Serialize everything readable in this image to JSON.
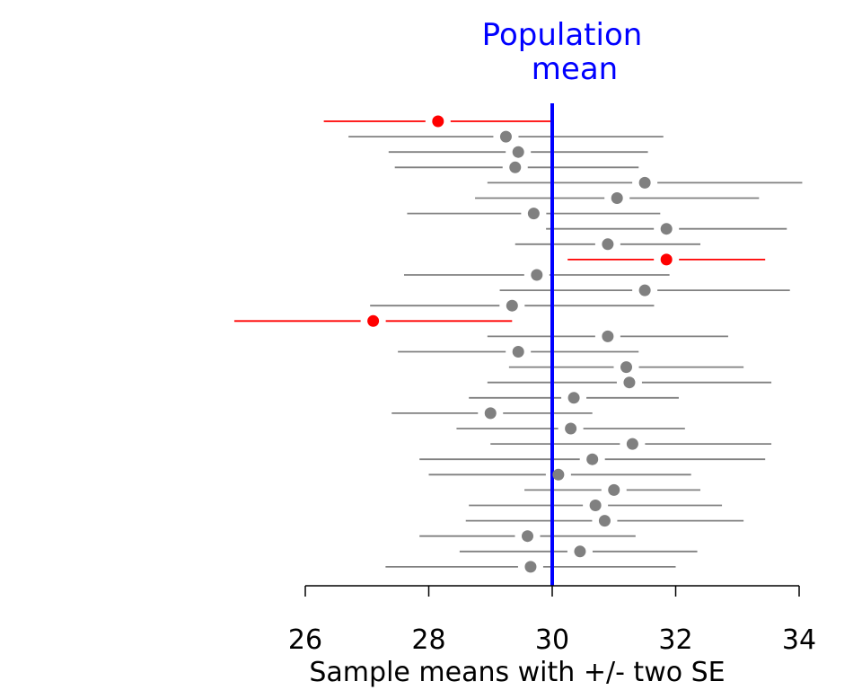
{
  "chart_data": {
    "type": "scatter",
    "title": "Population mean",
    "title_lines": [
      "Population",
      "mean"
    ],
    "xlabel": "Sample means with +/- two SE",
    "ylabel": "",
    "xlim": [
      26,
      34
    ],
    "xticks": [
      26,
      28,
      30,
      32,
      34
    ],
    "xtick_labels": [
      "26",
      "28",
      "30",
      "32",
      "34"
    ],
    "population_mean": 30,
    "grid": false,
    "legend": "none",
    "colors": {
      "covers": "#808080",
      "misses": "#ff0000",
      "population_line": "#0000ff",
      "axis": "#000000"
    },
    "series": [
      {
        "mean": 28.15,
        "lower": 26.3,
        "upper": 30.0,
        "covers_mean": false
      },
      {
        "mean": 29.25,
        "lower": 26.7,
        "upper": 31.8,
        "covers_mean": true
      },
      {
        "mean": 29.45,
        "lower": 27.35,
        "upper": 31.55,
        "covers_mean": true
      },
      {
        "mean": 29.4,
        "lower": 27.45,
        "upper": 31.4,
        "covers_mean": true
      },
      {
        "mean": 31.5,
        "lower": 28.95,
        "upper": 34.05,
        "covers_mean": true
      },
      {
        "mean": 31.05,
        "lower": 28.75,
        "upper": 33.35,
        "covers_mean": true
      },
      {
        "mean": 29.7,
        "lower": 27.65,
        "upper": 31.75,
        "covers_mean": true
      },
      {
        "mean": 31.85,
        "lower": 29.9,
        "upper": 33.8,
        "covers_mean": true
      },
      {
        "mean": 30.9,
        "lower": 29.4,
        "upper": 32.4,
        "covers_mean": true
      },
      {
        "mean": 31.85,
        "lower": 30.25,
        "upper": 33.45,
        "covers_mean": false
      },
      {
        "mean": 29.75,
        "lower": 27.6,
        "upper": 31.9,
        "covers_mean": true
      },
      {
        "mean": 31.5,
        "lower": 29.15,
        "upper": 33.85,
        "covers_mean": true
      },
      {
        "mean": 29.35,
        "lower": 27.05,
        "upper": 31.65,
        "covers_mean": true
      },
      {
        "mean": 27.1,
        "lower": 24.85,
        "upper": 29.35,
        "covers_mean": false
      },
      {
        "mean": 30.9,
        "lower": 28.95,
        "upper": 32.85,
        "covers_mean": true
      },
      {
        "mean": 29.45,
        "lower": 27.5,
        "upper": 31.4,
        "covers_mean": true
      },
      {
        "mean": 31.2,
        "lower": 29.3,
        "upper": 33.1,
        "covers_mean": true
      },
      {
        "mean": 31.25,
        "lower": 28.95,
        "upper": 33.55,
        "covers_mean": true
      },
      {
        "mean": 30.35,
        "lower": 28.65,
        "upper": 32.05,
        "covers_mean": true
      },
      {
        "mean": 29.0,
        "lower": 27.4,
        "upper": 30.65,
        "covers_mean": true
      },
      {
        "mean": 30.3,
        "lower": 28.45,
        "upper": 32.15,
        "covers_mean": true
      },
      {
        "mean": 31.3,
        "lower": 29.0,
        "upper": 33.55,
        "covers_mean": true
      },
      {
        "mean": 30.65,
        "lower": 27.85,
        "upper": 33.45,
        "covers_mean": true
      },
      {
        "mean": 30.1,
        "lower": 28.0,
        "upper": 32.25,
        "covers_mean": true
      },
      {
        "mean": 31.0,
        "lower": 29.55,
        "upper": 32.4,
        "covers_mean": true
      },
      {
        "mean": 30.7,
        "lower": 28.65,
        "upper": 32.75,
        "covers_mean": true
      },
      {
        "mean": 30.85,
        "lower": 28.6,
        "upper": 33.1,
        "covers_mean": true
      },
      {
        "mean": 29.6,
        "lower": 27.85,
        "upper": 31.35,
        "covers_mean": true
      },
      {
        "mean": 30.45,
        "lower": 28.5,
        "upper": 32.35,
        "covers_mean": true
      },
      {
        "mean": 29.65,
        "lower": 27.3,
        "upper": 32.0,
        "covers_mean": true
      }
    ]
  }
}
